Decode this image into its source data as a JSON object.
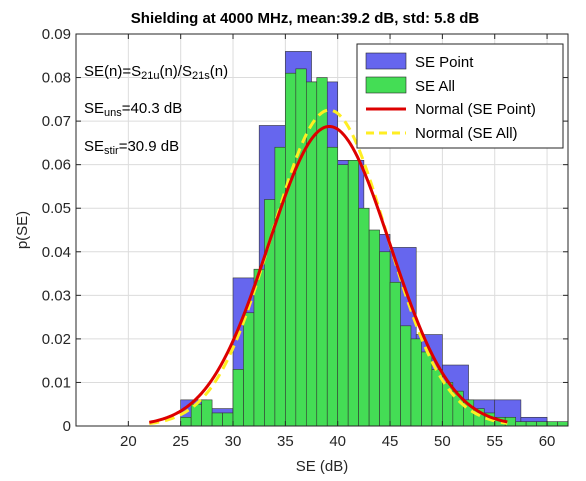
{
  "chart_data": {
    "type": "bar",
    "title": "Shielding at 4000 MHz, mean:39.2 dB, std: 5.8 dB",
    "xlabel": "SE (dB)",
    "ylabel": "p(SE)",
    "xlim": [
      15,
      62
    ],
    "ylim": [
      0,
      0.09
    ],
    "xticks": [
      20,
      25,
      30,
      35,
      40,
      45,
      50,
      55,
      60
    ],
    "yticks": [
      "0",
      "0.01",
      "0.02",
      "0.03",
      "0.04",
      "0.05",
      "0.06",
      "0.07",
      "0.08",
      "0.09"
    ],
    "grid": true,
    "legend_position": "top-right",
    "legend": [
      "SE Point",
      "SE All",
      "Normal (SE Point)",
      "Normal (SE All)"
    ],
    "annotations": {
      "line1": {
        "base": "SE(n)=S",
        "sub1": "21u",
        "mid": "(n)/S",
        "sub2": "21s",
        "tail": "(n)"
      },
      "line2": {
        "base": "SE",
        "sub": "uns",
        "tail": "=40.3 dB"
      },
      "line3": {
        "base": "SE",
        "sub": "stir",
        "tail": "=30.9 dB"
      }
    },
    "colors": {
      "se_point": "#6666ee",
      "se_all": "#44dd55",
      "normal_point": "#dd0000",
      "normal_all": "#ffee22"
    },
    "series": [
      {
        "name": "SE Point",
        "bin_edges": [
          25,
          27.5,
          30,
          32.5,
          35,
          37.5,
          40,
          42.5,
          45,
          47.5,
          50,
          52.5,
          55,
          57.5,
          60
        ],
        "values": [
          0.006,
          0.004,
          0.034,
          0.069,
          0.086,
          0.079,
          0.061,
          0.044,
          0.041,
          0.021,
          0.014,
          0.006,
          0.006,
          0.002
        ]
      },
      {
        "name": "SE All",
        "bin_width": 1,
        "bin_edges_start": 25,
        "values": [
          0.002,
          0.005,
          0.006,
          0.003,
          0.003,
          0.013,
          0.026,
          0.036,
          0.052,
          0.064,
          0.081,
          0.082,
          0.079,
          0.08,
          0.064,
          0.06,
          0.061,
          0.05,
          0.045,
          0.04,
          0.033,
          0.023,
          0.02,
          0.017,
          0.013,
          0.01,
          0.008,
          0.006,
          0.004,
          0.003,
          0.002,
          0.002,
          0.001,
          0.001,
          0.001,
          0.001,
          0.001
        ]
      },
      {
        "name": "Normal (SE Point)",
        "kind": "line",
        "mean": 39.2,
        "std": 5.8,
        "x_range": [
          22,
          56.2
        ]
      },
      {
        "name": "Normal (SE All)",
        "kind": "line",
        "mean": 39.2,
        "std": 5.5,
        "x_range": [
          22,
          56.2
        ]
      }
    ]
  }
}
